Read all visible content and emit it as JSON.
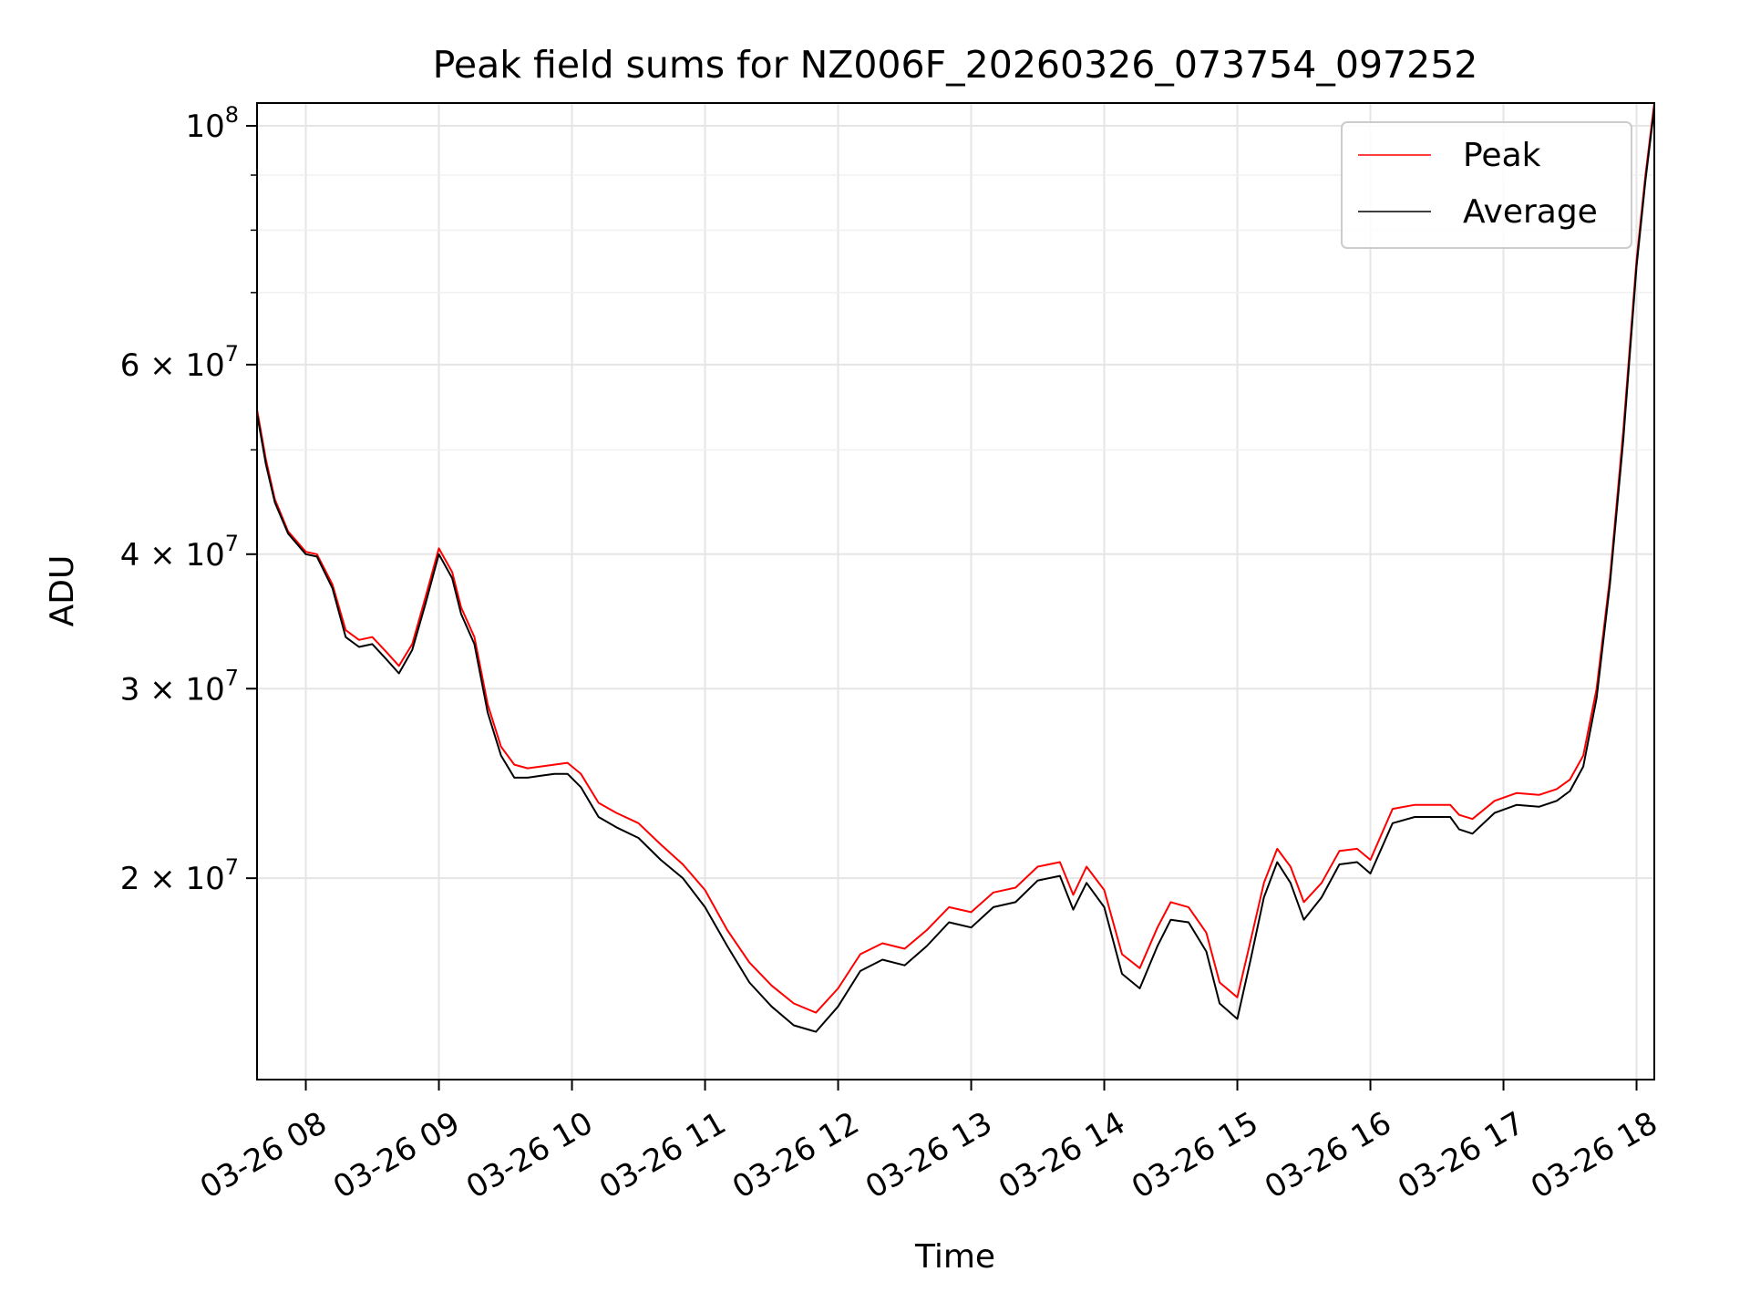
{
  "chart_data": {
    "type": "line",
    "title": "Peak field sums for NZ006F_20260326_073754_097252",
    "xlabel": "Time",
    "ylabel": "ADU",
    "x_axis": "time",
    "xlim": [
      "2026-03-26T07:38",
      "2026-03-26T18:08"
    ],
    "ylim": [
      13000000,
      105000000
    ],
    "y_scale": "log",
    "grid": true,
    "legend_position": "top-right",
    "x_ticks": [
      {
        "value": "2026-03-26T08:00",
        "label": "03-26 08"
      },
      {
        "value": "2026-03-26T09:00",
        "label": "03-26 09"
      },
      {
        "value": "2026-03-26T10:00",
        "label": "03-26 10"
      },
      {
        "value": "2026-03-26T11:00",
        "label": "03-26 11"
      },
      {
        "value": "2026-03-26T12:00",
        "label": "03-26 12"
      },
      {
        "value": "2026-03-26T13:00",
        "label": "03-26 13"
      },
      {
        "value": "2026-03-26T14:00",
        "label": "03-26 14"
      },
      {
        "value": "2026-03-26T15:00",
        "label": "03-26 15"
      },
      {
        "value": "2026-03-26T16:00",
        "label": "03-26 16"
      },
      {
        "value": "2026-03-26T17:00",
        "label": "03-26 17"
      },
      {
        "value": "2026-03-26T18:00",
        "label": "03-26 18"
      }
    ],
    "y_ticks": [
      {
        "value": 20000000,
        "mantissa": "2",
        "label": "2 × 10^7"
      },
      {
        "value": 30000000,
        "mantissa": "3",
        "label": "3 × 10^7"
      },
      {
        "value": 40000000,
        "mantissa": "4",
        "label": "4 × 10^7"
      },
      {
        "value": 60000000,
        "mantissa": "6",
        "label": "6 × 10^7"
      },
      {
        "value": 100000000,
        "mantissa": "",
        "label": "10^8"
      }
    ],
    "y_minor_ticks": [
      50000000,
      70000000,
      80000000,
      90000000
    ],
    "y_tick_base": "10",
    "series": [
      {
        "name": "Peak",
        "color": "#ff0000",
        "x": [
          "2026-03-26T07:38",
          "2026-03-26T07:42",
          "2026-03-26T07:46",
          "2026-03-26T07:52",
          "2026-03-26T08:00",
          "2026-03-26T08:05",
          "2026-03-26T08:12",
          "2026-03-26T08:18",
          "2026-03-26T08:24",
          "2026-03-26T08:30",
          "2026-03-26T08:36",
          "2026-03-26T08:42",
          "2026-03-26T08:48",
          "2026-03-26T08:54",
          "2026-03-26T09:00",
          "2026-03-26T09:06",
          "2026-03-26T09:10",
          "2026-03-26T09:16",
          "2026-03-26T09:22",
          "2026-03-26T09:28",
          "2026-03-26T09:34",
          "2026-03-26T09:40",
          "2026-03-26T09:46",
          "2026-03-26T09:52",
          "2026-03-26T09:58",
          "2026-03-26T10:04",
          "2026-03-26T10:12",
          "2026-03-26T10:20",
          "2026-03-26T10:30",
          "2026-03-26T10:40",
          "2026-03-26T10:50",
          "2026-03-26T11:00",
          "2026-03-26T11:10",
          "2026-03-26T11:20",
          "2026-03-26T11:30",
          "2026-03-26T11:40",
          "2026-03-26T11:50",
          "2026-03-26T12:00",
          "2026-03-26T12:10",
          "2026-03-26T12:20",
          "2026-03-26T12:30",
          "2026-03-26T12:40",
          "2026-03-26T12:50",
          "2026-03-26T13:00",
          "2026-03-26T13:10",
          "2026-03-26T13:20",
          "2026-03-26T13:30",
          "2026-03-26T13:40",
          "2026-03-26T13:46",
          "2026-03-26T13:52",
          "2026-03-26T14:00",
          "2026-03-26T14:08",
          "2026-03-26T14:16",
          "2026-03-26T14:24",
          "2026-03-26T14:30",
          "2026-03-26T14:38",
          "2026-03-26T14:46",
          "2026-03-26T14:52",
          "2026-03-26T15:00",
          "2026-03-26T15:06",
          "2026-03-26T15:12",
          "2026-03-26T15:18",
          "2026-03-26T15:24",
          "2026-03-26T15:30",
          "2026-03-26T15:38",
          "2026-03-26T15:46",
          "2026-03-26T15:54",
          "2026-03-26T16:00",
          "2026-03-26T16:10",
          "2026-03-26T16:20",
          "2026-03-26T16:30",
          "2026-03-26T16:36",
          "2026-03-26T16:40",
          "2026-03-26T16:46",
          "2026-03-26T16:56",
          "2026-03-26T17:06",
          "2026-03-26T17:16",
          "2026-03-26T17:24",
          "2026-03-26T17:30",
          "2026-03-26T17:36",
          "2026-03-26T17:42",
          "2026-03-26T17:48",
          "2026-03-26T17:54",
          "2026-03-26T18:00",
          "2026-03-26T18:04",
          "2026-03-26T18:08"
        ],
        "y": [
          54500000,
          49000000,
          45000000,
          42000000,
          40200000,
          40000000,
          37500000,
          34000000,
          33300000,
          33500000,
          32500000,
          31500000,
          33000000,
          36500000,
          40500000,
          38500000,
          35700000,
          33500000,
          29000000,
          26500000,
          25500000,
          25300000,
          25400000,
          25500000,
          25600000,
          25000000,
          23500000,
          23000000,
          22500000,
          21500000,
          20600000,
          19500000,
          17900000,
          16700000,
          15900000,
          15300000,
          15000000,
          15800000,
          17000000,
          17400000,
          17200000,
          17900000,
          18800000,
          18600000,
          19400000,
          19600000,
          20500000,
          20700000,
          19300000,
          20500000,
          19500000,
          17000000,
          16500000,
          18000000,
          19000000,
          18800000,
          17800000,
          16000000,
          15500000,
          17500000,
          19800000,
          21300000,
          20500000,
          19000000,
          19800000,
          21200000,
          21300000,
          20800000,
          23200000,
          23400000,
          23400000,
          23400000,
          22900000,
          22700000,
          23600000,
          24000000,
          23900000,
          24200000,
          24700000,
          26000000,
          30000000,
          38000000,
          52000000,
          75000000,
          90000000,
          105000000
        ]
      },
      {
        "name": "Average",
        "color": "#000000",
        "x": [
          "2026-03-26T07:38",
          "2026-03-26T07:42",
          "2026-03-26T07:46",
          "2026-03-26T07:52",
          "2026-03-26T08:00",
          "2026-03-26T08:05",
          "2026-03-26T08:12",
          "2026-03-26T08:18",
          "2026-03-26T08:24",
          "2026-03-26T08:30",
          "2026-03-26T08:36",
          "2026-03-26T08:42",
          "2026-03-26T08:48",
          "2026-03-26T08:54",
          "2026-03-26T09:00",
          "2026-03-26T09:06",
          "2026-03-26T09:10",
          "2026-03-26T09:16",
          "2026-03-26T09:22",
          "2026-03-26T09:28",
          "2026-03-26T09:34",
          "2026-03-26T09:40",
          "2026-03-26T09:46",
          "2026-03-26T09:52",
          "2026-03-26T09:58",
          "2026-03-26T10:04",
          "2026-03-26T10:12",
          "2026-03-26T10:20",
          "2026-03-26T10:30",
          "2026-03-26T10:40",
          "2026-03-26T10:50",
          "2026-03-26T11:00",
          "2026-03-26T11:10",
          "2026-03-26T11:20",
          "2026-03-26T11:30",
          "2026-03-26T11:40",
          "2026-03-26T11:50",
          "2026-03-26T12:00",
          "2026-03-26T12:10",
          "2026-03-26T12:20",
          "2026-03-26T12:30",
          "2026-03-26T12:40",
          "2026-03-26T12:50",
          "2026-03-26T13:00",
          "2026-03-26T13:10",
          "2026-03-26T13:20",
          "2026-03-26T13:30",
          "2026-03-26T13:40",
          "2026-03-26T13:46",
          "2026-03-26T13:52",
          "2026-03-26T14:00",
          "2026-03-26T14:08",
          "2026-03-26T14:16",
          "2026-03-26T14:24",
          "2026-03-26T14:30",
          "2026-03-26T14:38",
          "2026-03-26T14:46",
          "2026-03-26T14:52",
          "2026-03-26T15:00",
          "2026-03-26T15:06",
          "2026-03-26T15:12",
          "2026-03-26T15:18",
          "2026-03-26T15:24",
          "2026-03-26T15:30",
          "2026-03-26T15:38",
          "2026-03-26T15:46",
          "2026-03-26T15:54",
          "2026-03-26T16:00",
          "2026-03-26T16:10",
          "2026-03-26T16:20",
          "2026-03-26T16:30",
          "2026-03-26T16:36",
          "2026-03-26T16:40",
          "2026-03-26T16:46",
          "2026-03-26T16:56",
          "2026-03-26T17:06",
          "2026-03-26T17:16",
          "2026-03-26T17:24",
          "2026-03-26T17:30",
          "2026-03-26T17:36",
          "2026-03-26T17:42",
          "2026-03-26T17:48",
          "2026-03-26T17:54",
          "2026-03-26T18:00",
          "2026-03-26T18:04",
          "2026-03-26T18:08"
        ],
        "y": [
          54000000,
          48500000,
          44700000,
          41800000,
          40000000,
          39800000,
          37200000,
          33500000,
          32800000,
          33000000,
          32000000,
          31000000,
          32600000,
          36000000,
          40000000,
          38000000,
          35200000,
          33000000,
          28500000,
          26000000,
          24800000,
          24800000,
          24900000,
          25000000,
          25000000,
          24300000,
          22800000,
          22300000,
          21800000,
          20800000,
          20000000,
          18800000,
          17300000,
          16000000,
          15200000,
          14600000,
          14400000,
          15200000,
          16400000,
          16800000,
          16600000,
          17300000,
          18200000,
          18000000,
          18800000,
          19000000,
          19900000,
          20100000,
          18700000,
          19800000,
          18800000,
          16300000,
          15800000,
          17300000,
          18300000,
          18200000,
          17100000,
          15300000,
          14800000,
          16800000,
          19200000,
          20700000,
          19800000,
          18300000,
          19200000,
          20600000,
          20700000,
          20200000,
          22500000,
          22800000,
          22800000,
          22800000,
          22200000,
          22000000,
          23000000,
          23400000,
          23300000,
          23600000,
          24100000,
          25400000,
          29400000,
          37500000,
          51000000,
          74000000,
          89000000,
          104000000
        ]
      }
    ]
  }
}
